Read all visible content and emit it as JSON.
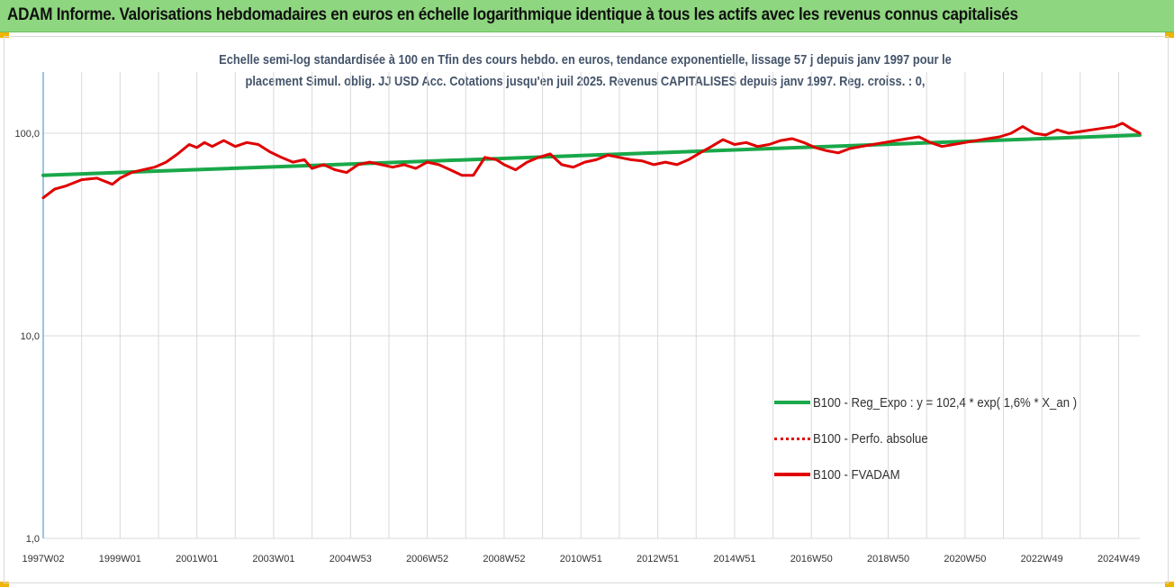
{
  "header": {
    "title": "ADAM Informe. Valorisations hebdomadaires en euros en échelle logarithmique identique à tous les actifs avec les revenus connus capitalisés"
  },
  "chart_data": {
    "type": "line",
    "title": "",
    "subtitle_lines": [
      "Echelle semi-log standardisée à 100 en Tfin des cours hebdo. en euros, tendance exponentielle, lissage 57 j depuis janv 1997 pour le",
      "placement Simul. oblig. JJ USD Acc. Cotations jusqu'en juil 2025. Revenus CAPITALISES depuis janv 1997. Reg. croiss. : 0,"
    ],
    "y_scale": "log",
    "ylim": [
      1,
      100
    ],
    "y_ticks": [
      "100,0",
      "10,0",
      "1,0"
    ],
    "x_range": [
      1997.0,
      2025.55
    ],
    "x_ticks": [
      "1997W02",
      "1999W01",
      "2001W01",
      "2003W01",
      "2004W53",
      "2006W52",
      "2008W52",
      "2010W51",
      "2012W51",
      "2014W51",
      "2016W50",
      "2018W50",
      "2020W50",
      "2022W49",
      "2024W49"
    ],
    "x_tick_positions": [
      1997.0,
      1999.0,
      2001.0,
      2003.0,
      2005.0,
      2007.0,
      2009.0,
      2011.0,
      2013.0,
      2015.0,
      2017.0,
      2019.0,
      2021.0,
      2023.0,
      2025.0
    ],
    "grid": {
      "vertical": true,
      "horizontal": true
    },
    "legend_position": "right",
    "colors": {
      "trend": "#19a84a",
      "perf": "#e00000",
      "fvadam": "#e00000",
      "axis": "#5b9bd5",
      "grid": "#d9d9d9"
    },
    "series": [
      {
        "name": "B100 - Reg_Expo : y = 102,4 * exp( 1,6% *  X_an )",
        "style": "solid-thick",
        "x": [
          1997.0,
          2025.55
        ],
        "y": [
          62,
          98
        ]
      },
      {
        "name": "B100 - Perfo. absolue",
        "style": "dotted",
        "x": [],
        "y": []
      },
      {
        "name": "B100 - FVADAM",
        "style": "solid-thick",
        "x": [
          1997.0,
          1997.3,
          1997.6,
          1998.0,
          1998.4,
          1998.8,
          1999.0,
          1999.3,
          1999.6,
          1999.9,
          2000.2,
          2000.5,
          2000.8,
          2001.0,
          2001.2,
          2001.4,
          2001.7,
          2002.0,
          2002.3,
          2002.6,
          2002.9,
          2003.2,
          2003.5,
          2003.8,
          2004.0,
          2004.3,
          2004.6,
          2004.9,
          2005.2,
          2005.5,
          2005.8,
          2006.1,
          2006.4,
          2006.7,
          2007.0,
          2007.3,
          2007.6,
          2007.9,
          2008.2,
          2008.5,
          2008.8,
          2009.0,
          2009.3,
          2009.6,
          2009.9,
          2010.2,
          2010.5,
          2010.8,
          2011.1,
          2011.4,
          2011.7,
          2012.0,
          2012.3,
          2012.6,
          2012.9,
          2013.2,
          2013.5,
          2013.8,
          2014.1,
          2014.4,
          2014.7,
          2015.0,
          2015.3,
          2015.6,
          2015.9,
          2016.2,
          2016.5,
          2016.8,
          2017.1,
          2017.4,
          2017.7,
          2018.0,
          2018.3,
          2018.6,
          2018.9,
          2019.2,
          2019.5,
          2019.8,
          2020.1,
          2020.4,
          2020.7,
          2021.0,
          2021.3,
          2021.6,
          2021.9,
          2022.2,
          2022.5,
          2022.8,
          2023.1,
          2023.4,
          2023.7,
          2024.0,
          2024.3,
          2024.6,
          2024.9,
          2025.1,
          2025.3,
          2025.55
        ],
        "y": [
          48,
          53,
          55,
          59,
          60,
          56,
          60,
          64,
          66,
          68,
          72,
          79,
          88,
          85,
          90,
          86,
          92,
          86,
          90,
          88,
          81,
          76,
          72,
          74,
          67,
          70,
          66,
          64,
          70,
          72,
          70,
          68,
          70,
          67,
          72,
          70,
          66,
          62,
          62,
          76,
          74,
          70,
          66,
          72,
          76,
          79,
          70,
          68,
          72,
          74,
          78,
          76,
          74,
          73,
          70,
          72,
          70,
          74,
          80,
          86,
          93,
          88,
          90,
          86,
          88,
          92,
          94,
          90,
          85,
          82,
          80,
          84,
          86,
          88,
          90,
          92,
          94,
          96,
          90,
          86,
          88,
          90,
          92,
          94,
          96,
          100,
          108,
          100,
          98,
          104,
          100,
          102,
          104,
          106,
          108,
          112,
          106,
          100
        ]
      }
    ]
  }
}
